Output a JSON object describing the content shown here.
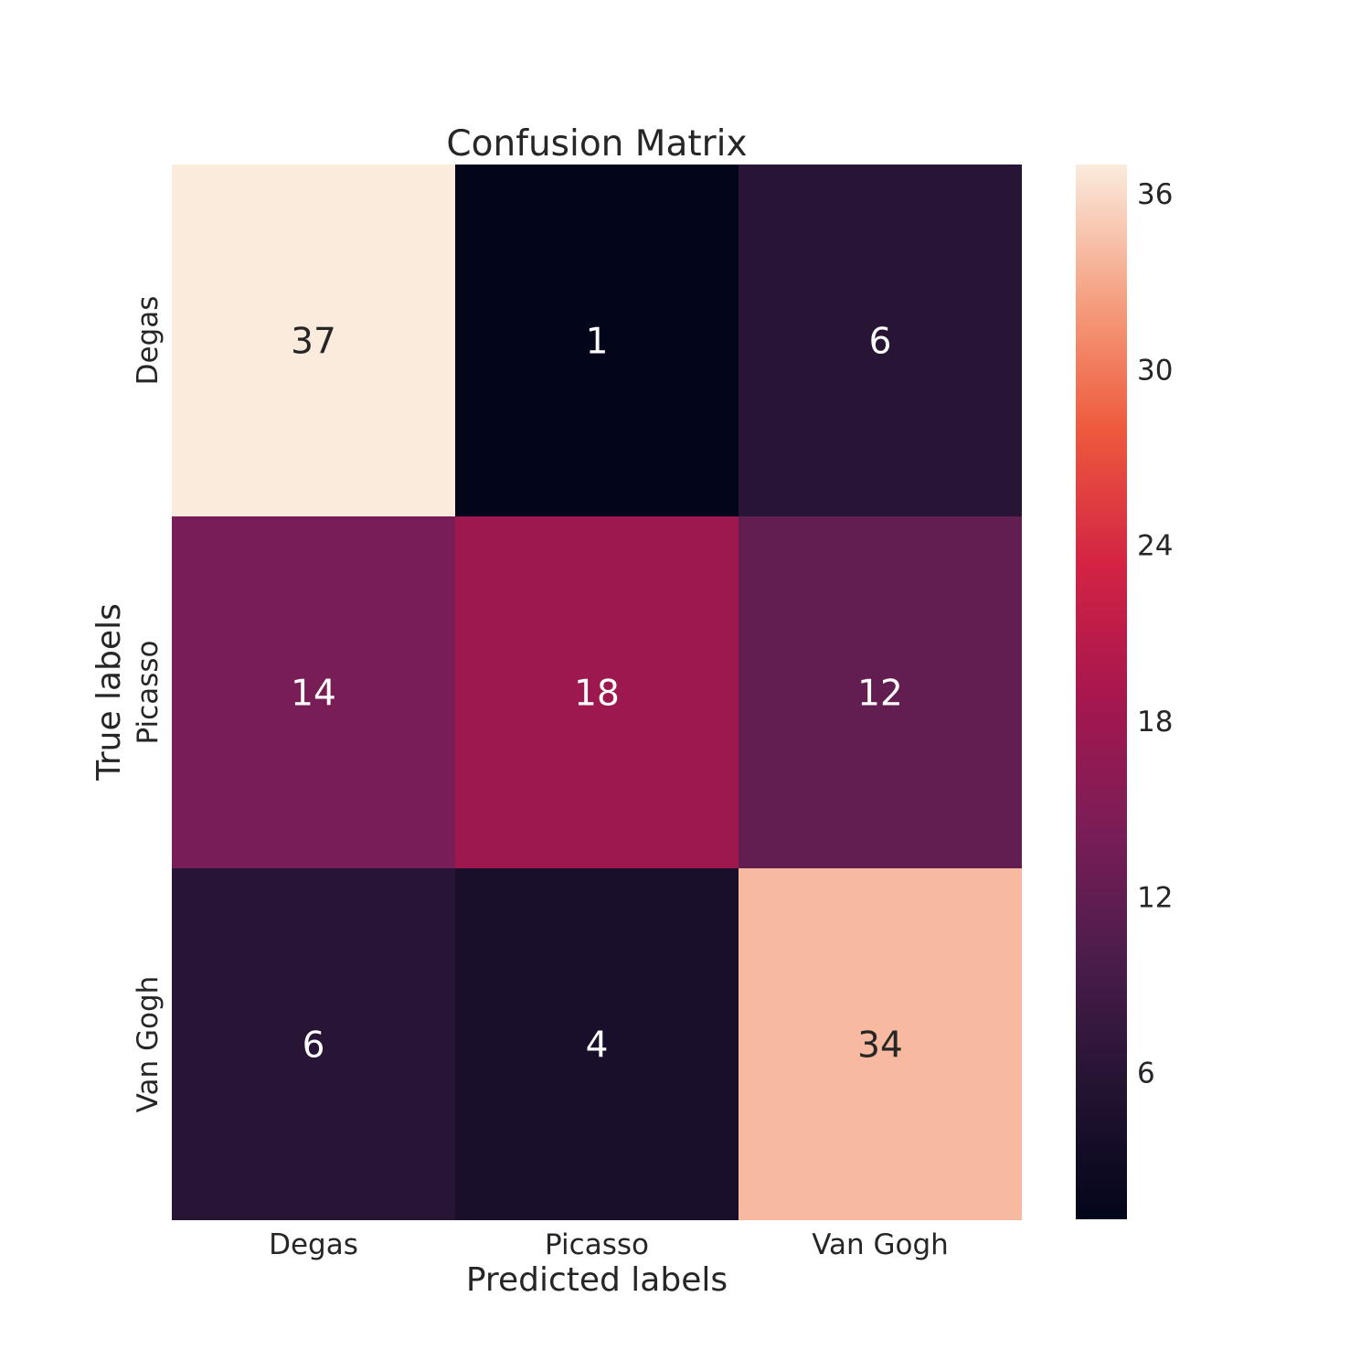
{
  "chart_data": {
    "type": "heatmap",
    "title": "Confusion Matrix",
    "xlabel": "Predicted labels",
    "ylabel": "True labels",
    "x_categories": [
      "Degas",
      "Picasso",
      "Van Gogh"
    ],
    "y_categories": [
      "Degas",
      "Picasso",
      "Van Gogh"
    ],
    "values": [
      [
        37,
        1,
        6
      ],
      [
        14,
        18,
        12
      ],
      [
        6,
        4,
        34
      ]
    ],
    "colormap": "rocket",
    "color_range": [
      1,
      37
    ],
    "colorbar_ticks": [
      6,
      12,
      18,
      24,
      30,
      36
    ]
  }
}
